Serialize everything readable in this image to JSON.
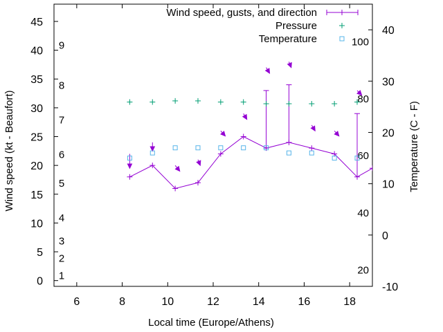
{
  "chart_data": {
    "type": "line",
    "xlabel": "Local time (Europe/Athens)",
    "ylabel": "Wind speed (kt - Beaufort)",
    "y2label": "Temperature (C - F)",
    "xlim": [
      5,
      19
    ],
    "ylim": [
      -1,
      48
    ],
    "y2lim": [
      -10,
      45
    ],
    "x_ticks": [
      6,
      8,
      10,
      12,
      14,
      16,
      18
    ],
    "y_ticks": [
      0,
      5,
      10,
      15,
      20,
      25,
      30,
      35,
      40,
      45
    ],
    "y2_ticks": [
      -10,
      0,
      10,
      20,
      30,
      40
    ],
    "beaufort_labels": [
      {
        "label": "1",
        "y": 1
      },
      {
        "label": "2",
        "y": 4
      },
      {
        "label": "3",
        "y": 7
      },
      {
        "label": "4",
        "y": 11
      },
      {
        "label": "5",
        "y": 17
      },
      {
        "label": "6",
        "y": 22
      },
      {
        "label": "7",
        "y": 28
      },
      {
        "label": "8",
        "y": 34
      },
      {
        "label": "9",
        "y": 41
      }
    ],
    "fahrenheit_labels": [
      {
        "label": "20",
        "y2": -6.7
      },
      {
        "label": "40",
        "y2": 4.4
      },
      {
        "label": "60",
        "y2": 15.6
      },
      {
        "label": "80",
        "y2": 26.7
      },
      {
        "label": "100",
        "y2": 37.8
      }
    ],
    "legend_position": "top-right",
    "grid": false,
    "series": [
      {
        "name": "Wind speed, gusts, and direction",
        "color": "#9400d3",
        "x": [
          8.33,
          9.33,
          10.33,
          11.33,
          12.33,
          13.33,
          14.33,
          15.33,
          16.33,
          17.33,
          18.33,
          19.0
        ],
        "y": [
          18,
          20,
          16,
          17,
          22,
          25,
          23,
          24,
          23,
          22,
          18,
          19.5
        ],
        "gusts": [
          null,
          null,
          null,
          null,
          null,
          null,
          33,
          34,
          null,
          null,
          29,
          null
        ],
        "arrows": [
          {
            "x": 8.33,
            "y": 22,
            "dx": 0,
            "dy": -2.5
          },
          {
            "x": 9.33,
            "y": 24,
            "dx": 0,
            "dy": -1.5
          },
          {
            "x": 10.33,
            "y": 20,
            "dx": 0.2,
            "dy": -1.0
          },
          {
            "x": 11.33,
            "y": 21,
            "dx": 0.1,
            "dy": -1.0
          },
          {
            "x": 12.33,
            "y": 26,
            "dx": 0.2,
            "dy": -0.9
          },
          {
            "x": 13.33,
            "y": 29,
            "dx": 0.15,
            "dy": -1.0
          },
          {
            "x": 14.33,
            "y": 37,
            "dx": 0.15,
            "dy": -1.0
          },
          {
            "x": 15.33,
            "y": 38,
            "dx": 0.1,
            "dy": -1.0
          },
          {
            "x": 16.33,
            "y": 27,
            "dx": 0.15,
            "dy": -1.0
          },
          {
            "x": 17.33,
            "y": 26,
            "dx": 0.2,
            "dy": -0.9
          },
          {
            "x": 18.33,
            "y": 33,
            "dx": 0.2,
            "dy": -0.8
          }
        ]
      },
      {
        "name": "Pressure",
        "color": "#009e73",
        "marker": "plus",
        "x": [
          8.33,
          9.33,
          10.33,
          11.33,
          12.33,
          13.33,
          14.33,
          15.33,
          16.33,
          17.33,
          18.33
        ],
        "y": [
          31,
          31,
          31.2,
          31.2,
          31,
          31,
          30.7,
          30.7,
          30.7,
          30.7,
          31
        ]
      },
      {
        "name": "Temperature",
        "color": "#56b4e9",
        "marker": "square",
        "axis": "y2",
        "x": [
          8.33,
          9.33,
          10.33,
          11.33,
          12.33,
          13.33,
          14.33,
          15.33,
          16.33,
          17.33,
          18.33
        ],
        "y": [
          15,
          16,
          17,
          17,
          17,
          17,
          17,
          16,
          16,
          15,
          15
        ]
      }
    ]
  }
}
